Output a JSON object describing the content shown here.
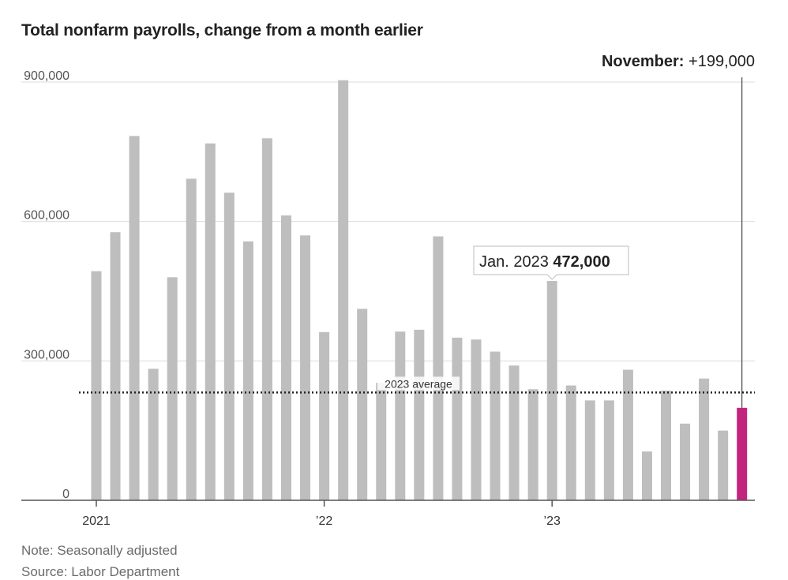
{
  "chart_data": {
    "type": "bar",
    "title": "Total nonfarm payrolls, change from a month earlier",
    "xlabel": "",
    "ylabel": "",
    "ylim": [
      0,
      900000
    ],
    "yticks": [
      0,
      300000,
      600000,
      900000
    ],
    "ytick_labels": [
      "0",
      "300,000",
      "600,000",
      "900,000"
    ],
    "xtick_labels": [
      {
        "index": 0,
        "label": "2021"
      },
      {
        "index": 12,
        "label": "’22"
      },
      {
        "index": 24,
        "label": "’23"
      }
    ],
    "categories": [
      "Jan 2021",
      "Feb 2021",
      "Mar 2021",
      "Apr 2021",
      "May 2021",
      "Jun 2021",
      "Jul 2021",
      "Aug 2021",
      "Sep 2021",
      "Oct 2021",
      "Nov 2021",
      "Dec 2021",
      "Jan 2022",
      "Feb 2022",
      "Mar 2022",
      "Apr 2022",
      "May 2022",
      "Jun 2022",
      "Jul 2022",
      "Aug 2022",
      "Sep 2022",
      "Oct 2022",
      "Nov 2022",
      "Dec 2022",
      "Jan 2023",
      "Feb 2023",
      "Mar 2023",
      "Apr 2023",
      "May 2023",
      "Jun 2023",
      "Jul 2023",
      "Aug 2023",
      "Sep 2023",
      "Oct 2023",
      "Nov 2023"
    ],
    "values": [
      493000,
      577000,
      784000,
      283000,
      480000,
      692000,
      768000,
      662000,
      557000,
      779000,
      613000,
      570000,
      362000,
      904000,
      412000,
      253000,
      363000,
      367000,
      568000,
      350000,
      346000,
      320000,
      290000,
      239000,
      472000,
      247000,
      215000,
      215000,
      281000,
      105000,
      236000,
      165000,
      262000,
      150000,
      199000
    ],
    "colors": {
      "bar": "#bebebe",
      "highlight": "#c2257e",
      "grid": "#dcdcdc",
      "axis": "#555555"
    },
    "highlight_index": 34,
    "average": {
      "value": 232000,
      "label": "2023 average",
      "style": "dotted"
    },
    "callouts": [
      {
        "index": 24,
        "prefix": "Jan. 2023",
        "value_text": "472,000"
      },
      {
        "index": 34,
        "prefix": "November:",
        "value_text": "+199,000"
      }
    ],
    "grid": true,
    "legend": "none"
  },
  "note": "Note: Seasonally adjusted",
  "source": "Source: Labor Department"
}
